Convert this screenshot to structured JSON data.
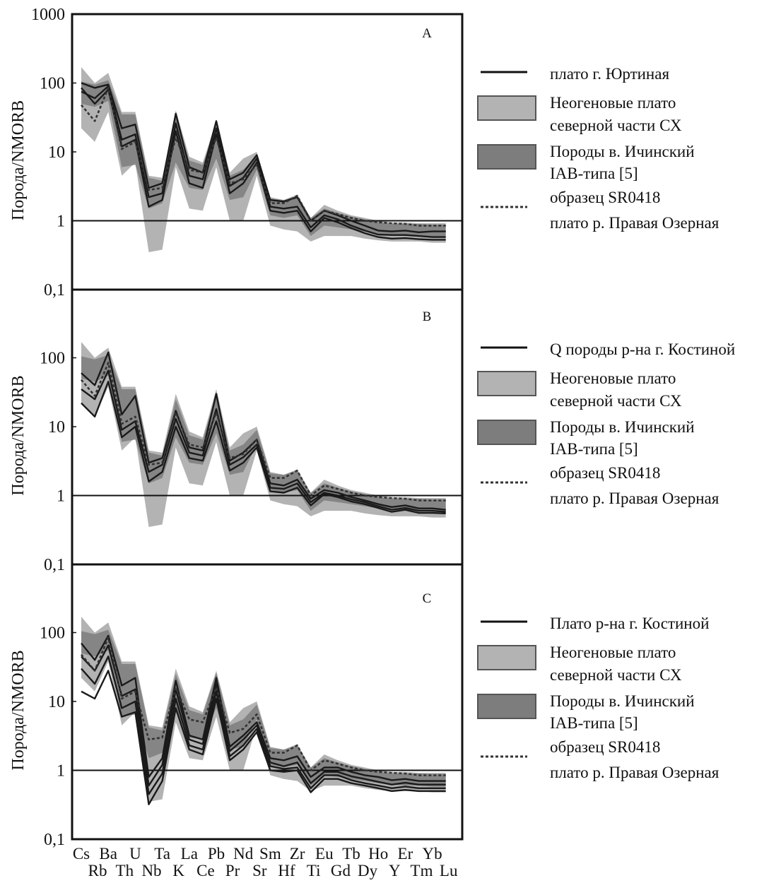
{
  "figure": {
    "ylabel": "Порода/NMORB",
    "elements_top": [
      "Cs",
      "Ba",
      "U",
      "Ta",
      "La",
      "Pb",
      "Nd",
      "Sm",
      "Zr",
      "Eu",
      "Tb",
      "Ho",
      "Er",
      "Yb"
    ],
    "elements_bottom": [
      "Rb",
      "Th",
      "Nb",
      "K",
      "Ce",
      "Pr",
      "Sr",
      "Hf",
      "Ti",
      "Gd",
      "Dy",
      "Y",
      "Tm",
      "Lu"
    ]
  },
  "chart_data": [
    {
      "type": "line",
      "panel": "A",
      "scale": "log",
      "ylim": [
        0.1,
        1000
      ],
      "y_ticks": [
        "0,1",
        "1",
        "10",
        "100",
        "1000"
      ],
      "reference_line": 1,
      "categories": [
        "Cs",
        "Rb",
        "Ba",
        "Th",
        "U",
        "Nb",
        "Ta",
        "K",
        "La",
        "Ce",
        "Pb",
        "Pr",
        "Nd",
        "Sr",
        "Sm",
        "Hf",
        "Zr",
        "Ti",
        "Eu",
        "Gd",
        "Tb",
        "Dy",
        "Ho",
        "Y",
        "Er",
        "Tm",
        "Yb",
        "Lu"
      ],
      "legend": [
        {
          "label": "плато г. Юртиная",
          "style": "solid"
        },
        {
          "label": "Неогеновые плато северной части СХ",
          "label_lines": [
            "Неогеновые плато",
            "северной части СХ"
          ],
          "style": "light-band"
        },
        {
          "label": "Породы в. Ичинский IAB-типа [5]",
          "label_lines": [
            "Породы в. Ичинский",
            "IAB-типа [5]"
          ],
          "style": "dark-band"
        },
        {
          "label": "образец SR0418 плато р. Правая Озерная",
          "label_lines": [
            "образец SR0418",
            "плато р. Правая Озерная"
          ],
          "style": "dotted"
        }
      ],
      "bands": {
        "light": {
          "upper": [
            170,
            100,
            140,
            38,
            38,
            4.5,
            4.2,
            40,
            8.5,
            7,
            28,
            5,
            8,
            10,
            2.2,
            2,
            2.4,
            1.1,
            1.7,
            1.4,
            1.2,
            1.1,
            1.0,
            0.95,
            0.95,
            0.92,
            0.92,
            0.92
          ],
          "lower": [
            22,
            14,
            38,
            4.5,
            7,
            0.35,
            0.38,
            6,
            1.5,
            1.4,
            6,
            1.0,
            1.0,
            4.5,
            0.85,
            0.75,
            0.7,
            0.5,
            0.6,
            0.6,
            0.6,
            0.55,
            0.52,
            0.5,
            0.5,
            0.5,
            0.48,
            0.48
          ]
        },
        "dark": {
          "upper": [
            105,
            95,
            110,
            35,
            35,
            4.2,
            3.8,
            32,
            7.5,
            6.5,
            26,
            4.5,
            5.5,
            9,
            2.1,
            2,
            2.3,
            1.1,
            1.5,
            1.3,
            1.15,
            1.05,
            0.95,
            0.9,
            0.9,
            0.9,
            0.88,
            0.88
          ],
          "lower": [
            50,
            45,
            55,
            6,
            6.5,
            1.5,
            1.8,
            7,
            3,
            2.8,
            8,
            2.0,
            2.2,
            5.5,
            1.2,
            1.1,
            1.2,
            0.6,
            0.85,
            0.8,
            0.75,
            0.7,
            0.65,
            0.62,
            0.6,
            0.6,
            0.58,
            0.58
          ]
        }
      },
      "series": [
        {
          "name": "плато г. Юртиная",
          "style": "solid",
          "values": [
            100,
            85,
            95,
            22,
            25,
            3,
            3.5,
            36,
            6,
            5,
            28,
            4,
            5,
            9,
            2,
            1.9,
            2.2,
            1,
            1.4,
            1.2,
            1.0,
            0.85,
            0.72,
            0.7,
            0.72,
            0.68,
            0.7,
            0.7
          ]
        },
        {
          "name": "плато г. Юртиная",
          "style": "solid",
          "values": [
            75,
            60,
            90,
            15,
            18,
            2.2,
            2.5,
            26,
            4.5,
            4,
            22,
            3.2,
            4.2,
            8,
            1.6,
            1.5,
            1.6,
            0.8,
            1.2,
            1.05,
            0.85,
            0.72,
            0.63,
            0.62,
            0.62,
            0.6,
            0.58,
            0.58
          ]
        },
        {
          "name": "плато г. Юртиная",
          "style": "solid",
          "values": [
            85,
            50,
            80,
            12,
            15,
            1.6,
            2,
            20,
            3.5,
            3,
            18,
            2.5,
            3.5,
            7,
            1.4,
            1.3,
            1.4,
            0.7,
            1.1,
            0.95,
            0.78,
            0.66,
            0.58,
            0.55,
            0.56,
            0.54,
            0.53,
            0.53
          ]
        },
        {
          "name": "образец SR0418 плато р. Правая Озерная",
          "style": "dotted",
          "values": [
            48,
            28,
            85,
            11,
            14,
            2.8,
            3,
            16,
            5.5,
            5,
            16,
            3.5,
            4,
            6.5,
            1.8,
            1.8,
            2.3,
            1.0,
            1.4,
            1.25,
            1.1,
            1.0,
            0.95,
            0.92,
            0.9,
            0.85,
            0.85,
            0.85
          ]
        }
      ]
    },
    {
      "type": "line",
      "panel": "B",
      "scale": "log",
      "ylim": [
        0.1,
        1000
      ],
      "y_ticks": [
        "0,1",
        "1",
        "10",
        "100"
      ],
      "reference_line": 1,
      "categories": [
        "Cs",
        "Rb",
        "Ba",
        "Th",
        "U",
        "Nb",
        "Ta",
        "K",
        "La",
        "Ce",
        "Pb",
        "Pr",
        "Nd",
        "Sr",
        "Sm",
        "Hf",
        "Zr",
        "Ti",
        "Eu",
        "Gd",
        "Tb",
        "Dy",
        "Ho",
        "Y",
        "Er",
        "Tm",
        "Yb",
        "Lu"
      ],
      "legend": [
        {
          "label": "Q породы р-на г. Костиной",
          "style": "solid"
        },
        {
          "label": "Неогеновые плато северной части СХ",
          "label_lines": [
            "Неогеновые плато",
            "северной части СХ"
          ],
          "style": "light-band"
        },
        {
          "label": "Породы в. Ичинский IAB-типа [5]",
          "label_lines": [
            "Породы в. Ичинский",
            "IAB-типа [5]"
          ],
          "style": "dark-band"
        },
        {
          "label": "образец SR0418 плато р. Правая Озерная",
          "label_lines": [
            "образец SR0418",
            "плато р. Правая Озерная"
          ],
          "style": "dotted"
        }
      ],
      "bands": {
        "light": {
          "upper": [
            170,
            100,
            140,
            38,
            38,
            4.5,
            4.2,
            30,
            8.5,
            7,
            35,
            5,
            8,
            10,
            2.2,
            2,
            2.4,
            1.1,
            1.7,
            1.4,
            1.2,
            1.1,
            1.0,
            0.95,
            0.95,
            0.92,
            0.92,
            0.92
          ],
          "lower": [
            22,
            14,
            38,
            4.5,
            7,
            0.35,
            0.38,
            5,
            1.5,
            1.4,
            6,
            1.0,
            1.0,
            4.5,
            0.85,
            0.75,
            0.7,
            0.5,
            0.6,
            0.6,
            0.6,
            0.55,
            0.52,
            0.5,
            0.5,
            0.5,
            0.48,
            0.48
          ]
        },
        "dark": {
          "upper": [
            105,
            95,
            110,
            35,
            35,
            4.2,
            3.8,
            25,
            7.5,
            6.5,
            30,
            4.5,
            5.5,
            9,
            2.1,
            2,
            2.3,
            1.1,
            1.5,
            1.3,
            1.15,
            1.05,
            0.95,
            0.9,
            0.9,
            0.9,
            0.88,
            0.88
          ],
          "lower": [
            50,
            45,
            55,
            6,
            6.5,
            1.5,
            1.8,
            7,
            3,
            2.8,
            8,
            2.0,
            2.2,
            5.5,
            1.2,
            1.1,
            1.2,
            0.6,
            0.85,
            0.8,
            0.75,
            0.7,
            0.65,
            0.62,
            0.6,
            0.6,
            0.58,
            0.58
          ]
        }
      },
      "series": [
        {
          "name": "Q породы р-на г. Костиной",
          "style": "solid",
          "values": [
            60,
            40,
            120,
            15,
            28,
            3,
            3.5,
            17,
            5,
            4.5,
            30,
            3.2,
            4.2,
            6.5,
            1.5,
            1.4,
            1.7,
            0.9,
            1.2,
            1.1,
            0.95,
            0.85,
            0.75,
            0.68,
            0.72,
            0.65,
            0.65,
            0.62
          ]
        },
        {
          "name": "Q породы р-на г. Костиной",
          "style": "solid",
          "values": [
            35,
            25,
            65,
            9,
            12,
            2.2,
            2.8,
            13,
            4.2,
            3.8,
            18,
            2.8,
            3.6,
            5.5,
            1.3,
            1.25,
            1.5,
            0.8,
            1.1,
            1.0,
            0.88,
            0.8,
            0.7,
            0.62,
            0.66,
            0.6,
            0.6,
            0.58
          ]
        },
        {
          "name": "Q породы р-на г. Костиной",
          "style": "solid",
          "values": [
            22,
            14,
            45,
            7,
            10,
            1.6,
            2.2,
            10,
            3.5,
            3.2,
            12,
            2.3,
            3,
            5,
            1.15,
            1.1,
            1.3,
            0.72,
            1.05,
            0.95,
            0.82,
            0.75,
            0.66,
            0.58,
            0.62,
            0.56,
            0.56,
            0.55
          ]
        },
        {
          "name": "образец SR0418 плато р. Правая Озерная",
          "style": "dotted",
          "values": [
            48,
            28,
            85,
            11,
            14,
            2.8,
            3,
            16,
            5.5,
            5,
            16,
            3.5,
            4,
            6.5,
            1.8,
            1.8,
            2.3,
            1.0,
            1.4,
            1.25,
            1.1,
            1.0,
            0.95,
            0.92,
            0.9,
            0.85,
            0.85,
            0.85
          ]
        }
      ]
    },
    {
      "type": "line",
      "panel": "C",
      "scale": "log",
      "ylim": [
        0.1,
        1000
      ],
      "y_ticks": [
        "0,1",
        "1",
        "10",
        "100"
      ],
      "reference_line": 1,
      "categories": [
        "Cs",
        "Rb",
        "Ba",
        "Th",
        "U",
        "Nb",
        "Ta",
        "K",
        "La",
        "Ce",
        "Pb",
        "Pr",
        "Nd",
        "Sr",
        "Sm",
        "Hf",
        "Zr",
        "Ti",
        "Eu",
        "Gd",
        "Tb",
        "Dy",
        "Ho",
        "Y",
        "Er",
        "Tm",
        "Yb",
        "Lu"
      ],
      "legend": [
        {
          "label": "Плато р-на г. Костиной",
          "style": "solid"
        },
        {
          "label": "Неогеновые плато северной части СХ",
          "label_lines": [
            "Неогеновые плато",
            "северной части СХ"
          ],
          "style": "light-band"
        },
        {
          "label": "Породы в. Ичинский IAB-типа [5]",
          "label_lines": [
            "Породы в. Ичинский",
            "IAB-типа [5]"
          ],
          "style": "dark-band"
        },
        {
          "label": "образец SR0418 плато р. Правая Озерная",
          "label_lines": [
            "образец SR0418",
            "плато р. Правая Озерная"
          ],
          "style": "dotted"
        }
      ],
      "bands": {
        "light": {
          "upper": [
            170,
            100,
            140,
            38,
            38,
            4.5,
            4.2,
            30,
            8.5,
            7,
            28,
            5,
            8,
            10,
            2.2,
            2,
            2.4,
            1.1,
            1.7,
            1.4,
            1.2,
            1.1,
            1.0,
            0.95,
            0.95,
            0.92,
            0.92,
            0.92
          ],
          "lower": [
            22,
            14,
            38,
            4.5,
            7,
            0.35,
            0.38,
            5,
            1.5,
            1.4,
            6,
            1.0,
            1.0,
            4.5,
            0.85,
            0.75,
            0.7,
            0.5,
            0.6,
            0.6,
            0.6,
            0.55,
            0.52,
            0.5,
            0.5,
            0.5,
            0.48,
            0.48
          ]
        },
        "dark": {
          "upper": [
            105,
            95,
            110,
            35,
            35,
            4.2,
            3.8,
            25,
            7.5,
            6.5,
            26,
            4.5,
            5.5,
            9,
            2.1,
            2,
            2.3,
            1.1,
            1.5,
            1.3,
            1.15,
            1.05,
            0.95,
            0.9,
            0.9,
            0.9,
            0.88,
            0.88
          ],
          "lower": [
            50,
            45,
            55,
            6,
            6.5,
            1.5,
            1.8,
            7,
            3,
            2.8,
            8,
            2.0,
            2.2,
            5.5,
            1.2,
            1.1,
            1.2,
            0.6,
            0.85,
            0.8,
            0.75,
            0.7,
            0.65,
            0.62,
            0.6,
            0.6,
            0.58,
            0.58
          ]
        }
      },
      "series": [
        {
          "name": "Плато р-на г. Костиной",
          "style": "solid",
          "values": [
            70,
            40,
            90,
            17,
            22,
            0.8,
            1.5,
            20,
            3.2,
            2.8,
            22,
            2.2,
            3.2,
            5,
            1.5,
            1.4,
            1.6,
            0.8,
            1.1,
            1.1,
            0.95,
            0.85,
            0.8,
            0.72,
            0.75,
            0.7,
            0.7,
            0.7
          ]
        },
        {
          "name": "Плато р-на г. Костиной",
          "style": "solid",
          "values": [
            45,
            28,
            65,
            12,
            15,
            0.6,
            1.2,
            15,
            2.8,
            2.4,
            18,
            1.9,
            2.8,
            4.5,
            1.3,
            1.15,
            1.3,
            0.65,
            0.95,
            0.95,
            0.82,
            0.75,
            0.68,
            0.62,
            0.66,
            0.62,
            0.62,
            0.62
          ]
        },
        {
          "name": "Плато р-на г. Костиной",
          "style": "solid",
          "values": [
            30,
            18,
            45,
            8,
            10,
            0.45,
            0.9,
            11,
            2.3,
            2.0,
            14,
            1.6,
            2.3,
            4.0,
            1.15,
            1.05,
            1.1,
            0.55,
            0.85,
            0.85,
            0.72,
            0.65,
            0.6,
            0.55,
            0.58,
            0.55,
            0.55,
            0.55
          ]
        },
        {
          "name": "Плато р-на г. Костиной",
          "style": "solid",
          "values": [
            14,
            11,
            28,
            6,
            7,
            0.32,
            0.7,
            8,
            2.0,
            1.7,
            11,
            1.4,
            2.0,
            3.6,
            1.0,
            0.95,
            1.0,
            0.48,
            0.75,
            0.75,
            0.65,
            0.6,
            0.55,
            0.5,
            0.52,
            0.5,
            0.5,
            0.5
          ]
        },
        {
          "name": "образец SR0418 плато р. Правая Озерная",
          "style": "dotted",
          "values": [
            48,
            28,
            85,
            11,
            14,
            2.8,
            3,
            16,
            5.5,
            5,
            16,
            3.5,
            4,
            6.5,
            1.8,
            1.8,
            2.3,
            1.0,
            1.4,
            1.25,
            1.1,
            1.0,
            0.95,
            0.92,
            0.9,
            0.85,
            0.85,
            0.85
          ]
        }
      ]
    }
  ]
}
